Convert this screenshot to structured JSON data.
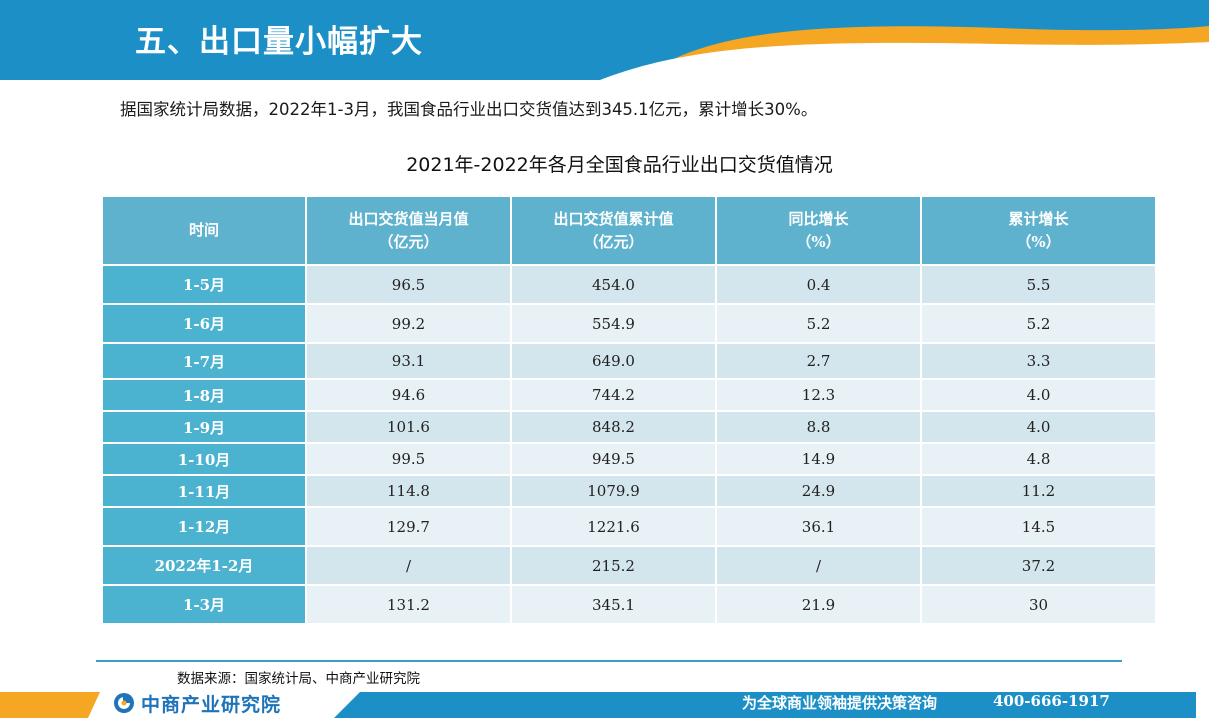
{
  "header": {
    "title": "五、出口量小幅扩大",
    "colors": {
      "band": "#1b8fc6",
      "swoosh": "#f5a623"
    }
  },
  "summary": "据国家统计局数据，2022年1-3月，我国食品行业出口交货值达到345.1亿元，累计增长30%。",
  "table": {
    "title": "2021年-2022年各月全国食品行业出口交货值情况",
    "columns": [
      {
        "line1": "时间",
        "line2": ""
      },
      {
        "line1": "出口交货值当月值",
        "line2": "（亿元）"
      },
      {
        "line1": "出口交货值累计值",
        "line2": "（亿元）"
      },
      {
        "line1": "同比增长",
        "line2": "（%）"
      },
      {
        "line1": "累计增长",
        "line2": "（%）"
      }
    ],
    "rows": [
      [
        "1-5月",
        "96.5",
        "454.0",
        "0.4",
        "5.5"
      ],
      [
        "1-6月",
        "99.2",
        "554.9",
        "5.2",
        "5.2"
      ],
      [
        "1-7月",
        "93.1",
        "649.0",
        "2.7",
        "3.3"
      ],
      [
        "1-8月",
        "94.6",
        "744.2",
        "12.3",
        "4.0"
      ],
      [
        "1-9月",
        "101.6",
        "848.2",
        "8.8",
        "4.0"
      ],
      [
        "1-10月",
        "99.5",
        "949.5",
        "14.9",
        "4.8"
      ],
      [
        "1-11月",
        "114.8",
        "1079.9",
        "24.9",
        "11.2"
      ],
      [
        "1-12月",
        "129.7",
        "1221.6",
        "36.1",
        "14.5"
      ],
      [
        "2022年1-2月",
        "/",
        "215.2",
        "/",
        "37.2"
      ],
      [
        "1-3月",
        "131.2",
        "345.1",
        "21.9",
        "30"
      ]
    ]
  },
  "source": "数据来源：国家统计局、中商产业研究院",
  "footer": {
    "logo_text": "中商产业研究院",
    "tagline": "为全球商业领袖提供决策咨询",
    "phone": "400-666-1917"
  }
}
